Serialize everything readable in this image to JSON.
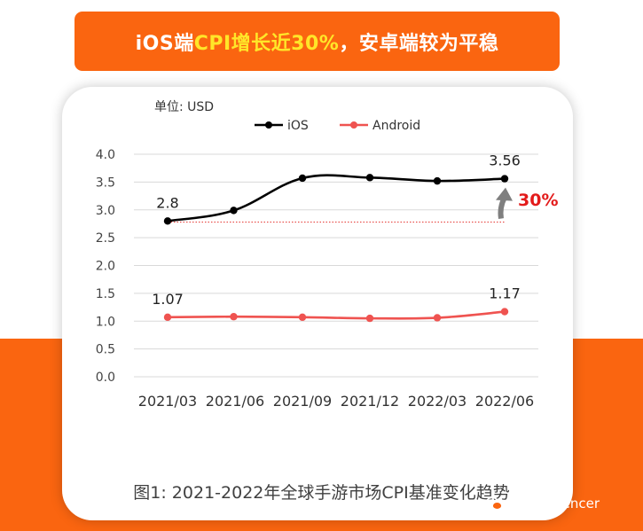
{
  "banner": {
    "prefix": "iOS端",
    "highlight": "CPI增长近30%",
    "suffix": "，安卓端较为平稳"
  },
  "colors": {
    "accent": "#fa6510",
    "highlight": "#ffe629",
    "ios": "#000000",
    "android": "#ef5350",
    "growth_label": "#e31b1b",
    "growth_arrow": "#7f7f7f"
  },
  "chart_data": {
    "type": "line",
    "unit_label": "单位: USD",
    "categories": [
      "2021/03",
      "2021/06",
      "2021/09",
      "2021/12",
      "2022/03",
      "2022/06"
    ],
    "x": [
      0,
      0.98,
      2.0,
      3.0,
      4.0,
      5.0
    ],
    "series": [
      {
        "name": "iOS",
        "color": "#000000",
        "values": [
          2.8,
          2.99,
          3.57,
          3.58,
          3.52,
          3.56
        ]
      },
      {
        "name": "Android",
        "color": "#ef5350",
        "values": [
          1.07,
          1.08,
          1.07,
          1.05,
          1.06,
          1.17
        ]
      }
    ],
    "data_labels": [
      {
        "series": "iOS",
        "index": 0,
        "text": "2.8"
      },
      {
        "series": "iOS",
        "index": 5,
        "text": "3.56"
      },
      {
        "series": "Android",
        "index": 0,
        "text": "1.07"
      },
      {
        "series": "Android",
        "index": 5,
        "text": "1.17"
      }
    ],
    "reference_line": {
      "value": 2.78
    },
    "growth_annotation": {
      "text": "30%",
      "from": 2.78,
      "to": 3.56
    },
    "ylim": [
      0,
      4
    ],
    "yticks": [
      "0.0",
      "0.5",
      "1.0",
      "1.5",
      "2.0",
      "2.5",
      "3.0",
      "3.5",
      "4.0"
    ],
    "grid": true,
    "legend_position": "top-center"
  },
  "caption": "图1: 2021-2022年全球手游市场CPI基准变化趋势",
  "watermark": {
    "icon": "wechat-icon",
    "text": "NoxInfluencer"
  }
}
